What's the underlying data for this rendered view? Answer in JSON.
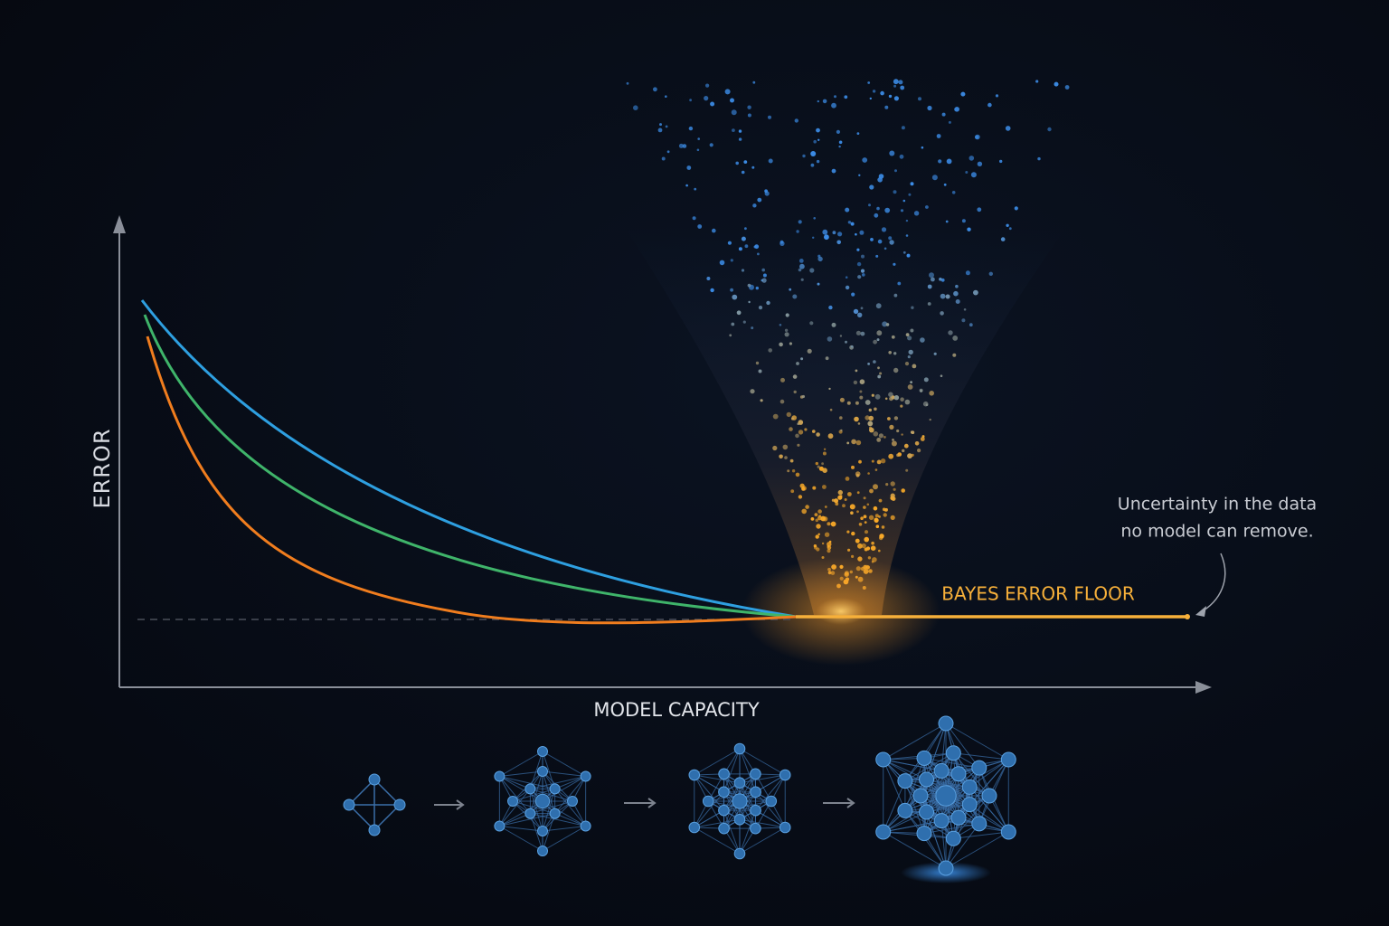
{
  "axes": {
    "y_label": "ERROR",
    "x_label": "MODEL CAPACITY"
  },
  "floor_label": "BAYES ERROR FLOOR",
  "annotation": {
    "lines": [
      "Uncertainty in the data",
      "no model can remove."
    ]
  }
}
